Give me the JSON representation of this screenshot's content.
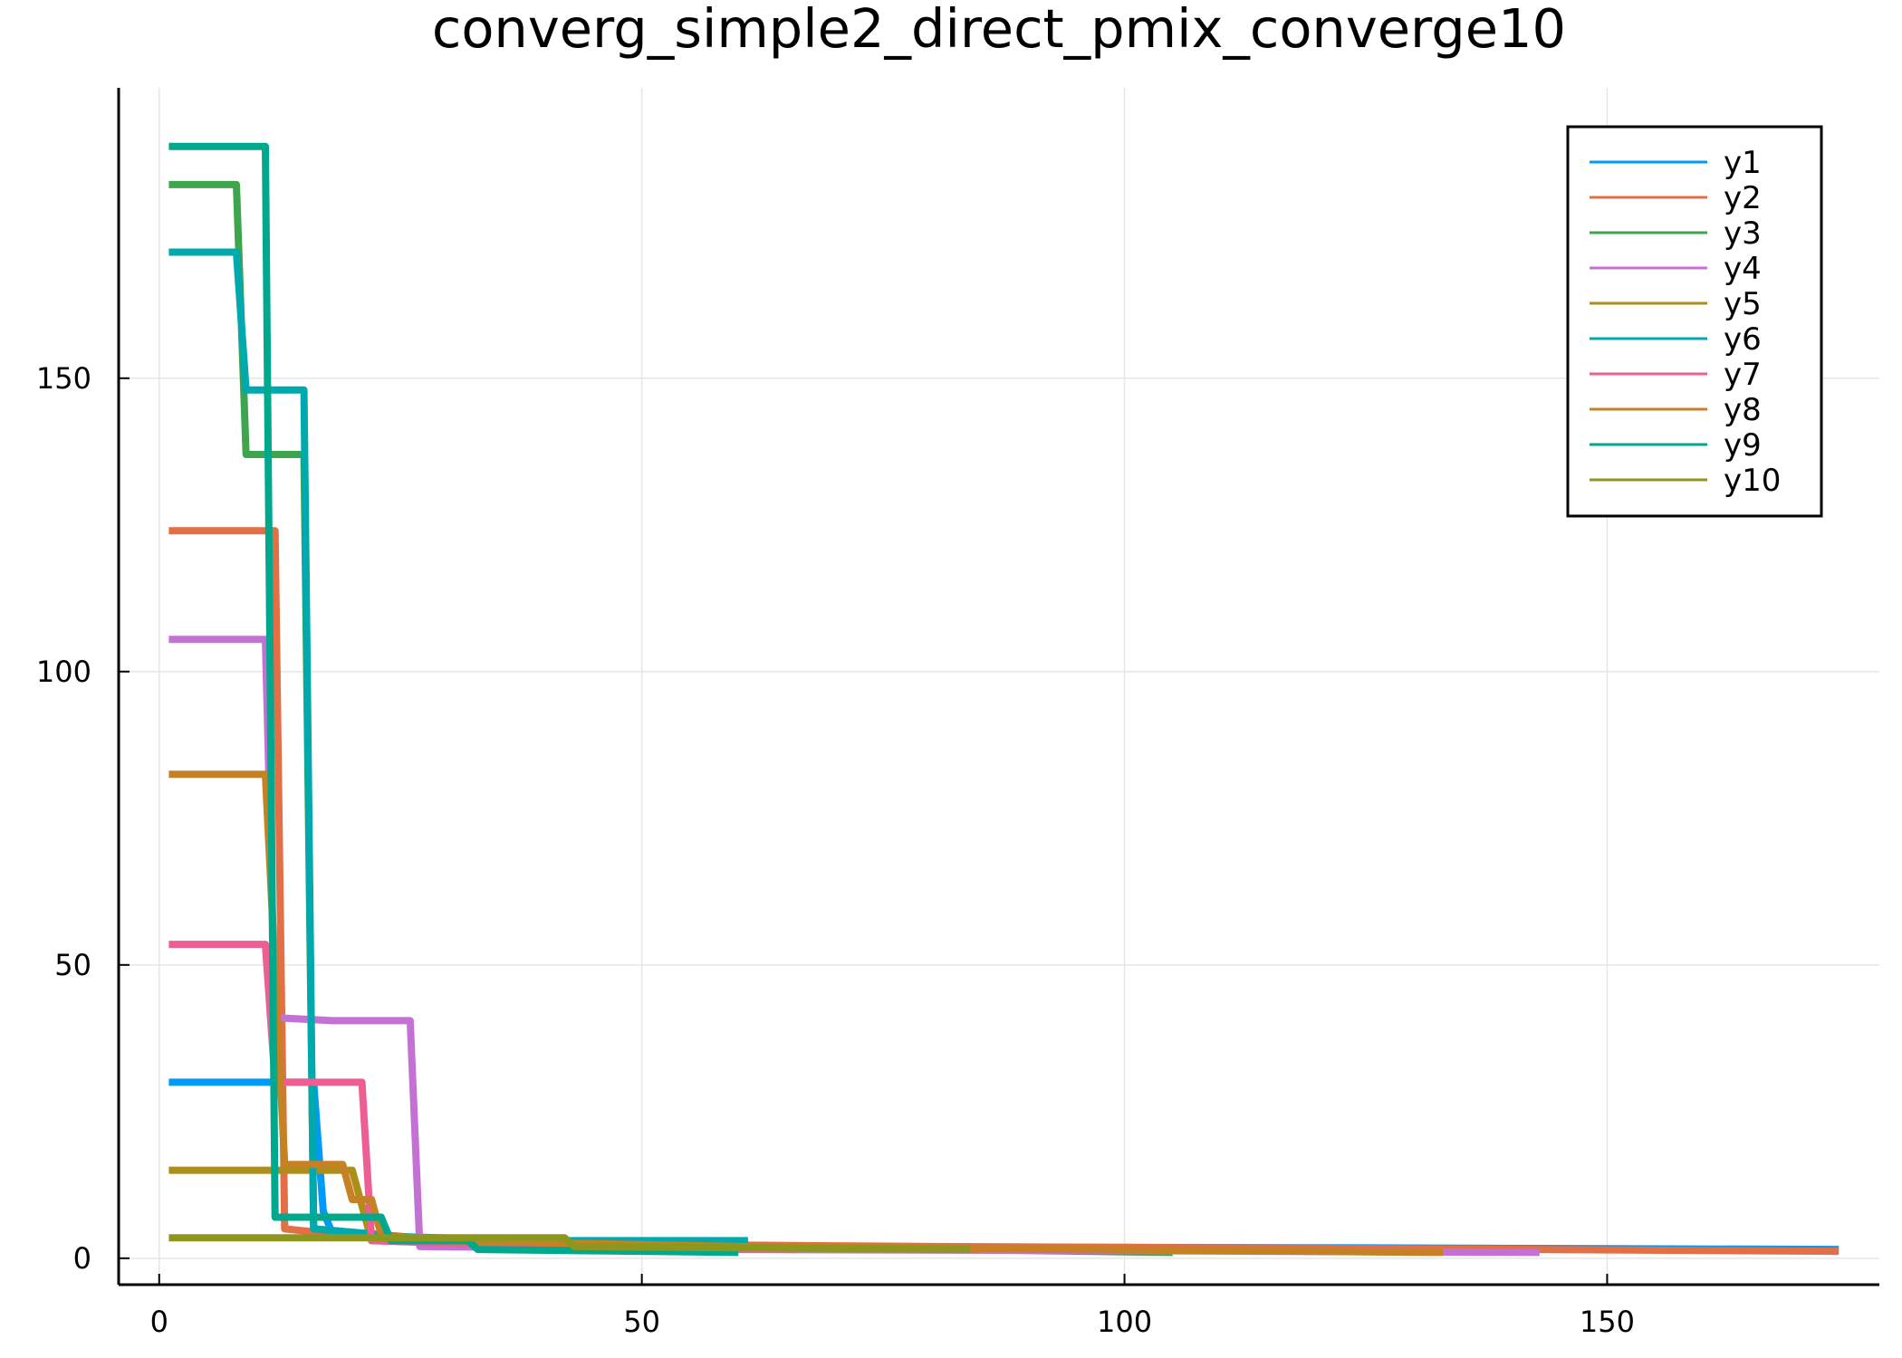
{
  "chart_data": {
    "type": "line",
    "title": "converg_simple2_direct_pmix_converge10",
    "xlabel": "",
    "ylabel": "",
    "xlim": [
      -4.2,
      178.2
    ],
    "ylim": [
      -4.5,
      199.5
    ],
    "xticks": [
      0,
      50,
      100,
      150
    ],
    "xtick_labels": [
      "0",
      "50",
      "100",
      "150"
    ],
    "yticks": [
      0,
      50,
      100,
      150
    ],
    "ytick_labels": [
      "0",
      "50",
      "100",
      "150"
    ],
    "grid": true,
    "legend_position": "top-right",
    "series": [
      {
        "name": "y1",
        "color": "#009af9",
        "points": [
          [
            1,
            30
          ],
          [
            16,
            30
          ],
          [
            17,
            8
          ],
          [
            18,
            4
          ],
          [
            40,
            3
          ],
          [
            60,
            2
          ],
          [
            120,
            1.8
          ],
          [
            174,
            1.5
          ]
        ]
      },
      {
        "name": "y2",
        "color": "#e26f46",
        "points": [
          [
            1,
            124
          ],
          [
            12,
            124
          ],
          [
            13,
            5
          ],
          [
            25,
            3
          ],
          [
            40,
            2.5
          ],
          [
            80,
            2
          ],
          [
            120,
            1.7
          ],
          [
            174,
            1.2
          ]
        ]
      },
      {
        "name": "y3",
        "color": "#3ea44e",
        "points": [
          [
            1,
            183
          ],
          [
            8,
            183
          ],
          [
            9,
            137
          ],
          [
            15,
            137
          ],
          [
            16,
            5
          ],
          [
            30,
            3
          ],
          [
            60,
            2
          ],
          [
            105,
            1
          ]
        ]
      },
      {
        "name": "y4",
        "color": "#c371d2",
        "points": [
          [
            1,
            105.5
          ],
          [
            11,
            105.5
          ],
          [
            12,
            41
          ],
          [
            18,
            40.5
          ],
          [
            26,
            40.5
          ],
          [
            27,
            2
          ],
          [
            60,
            1.5
          ],
          [
            100,
            1.3
          ],
          [
            143,
            1
          ]
        ]
      },
      {
        "name": "y5",
        "color": "#ac8e18",
        "points": [
          [
            1,
            15
          ],
          [
            20,
            15
          ],
          [
            22,
            3
          ],
          [
            40,
            2.5
          ],
          [
            85,
            1.5
          ]
        ]
      },
      {
        "name": "y6",
        "color": "#00a9ad",
        "points": [
          [
            1,
            171.5
          ],
          [
            8,
            171.5
          ],
          [
            9,
            148
          ],
          [
            15,
            148
          ],
          [
            16,
            5
          ],
          [
            30,
            3
          ],
          [
            61,
            3
          ]
        ]
      },
      {
        "name": "y7",
        "color": "#ed5e93",
        "points": [
          [
            1,
            53.5
          ],
          [
            11,
            53.5
          ],
          [
            12,
            30
          ],
          [
            21,
            30
          ],
          [
            22,
            3
          ],
          [
            40,
            2
          ],
          [
            66,
            1.5
          ]
        ]
      },
      {
        "name": "y8",
        "color": "#c68125",
        "points": [
          [
            1,
            82.5
          ],
          [
            11,
            82.5
          ],
          [
            13,
            16
          ],
          [
            19,
            16
          ],
          [
            20,
            10
          ],
          [
            22,
            10
          ],
          [
            23,
            4
          ],
          [
            29,
            3
          ],
          [
            60,
            2
          ],
          [
            133,
            1
          ]
        ]
      },
      {
        "name": "y9",
        "color": "#00a98d",
        "points": [
          [
            1,
            189.5
          ],
          [
            11,
            189.5
          ],
          [
            12,
            7
          ],
          [
            23,
            7
          ],
          [
            24,
            3
          ],
          [
            32,
            3
          ],
          [
            33,
            1.5
          ],
          [
            60,
            1
          ]
        ]
      },
      {
        "name": "y10",
        "color": "#8e971d",
        "points": [
          [
            1,
            3.5
          ],
          [
            42,
            3.5
          ],
          [
            43,
            2
          ],
          [
            84,
            1.5
          ]
        ]
      }
    ]
  }
}
